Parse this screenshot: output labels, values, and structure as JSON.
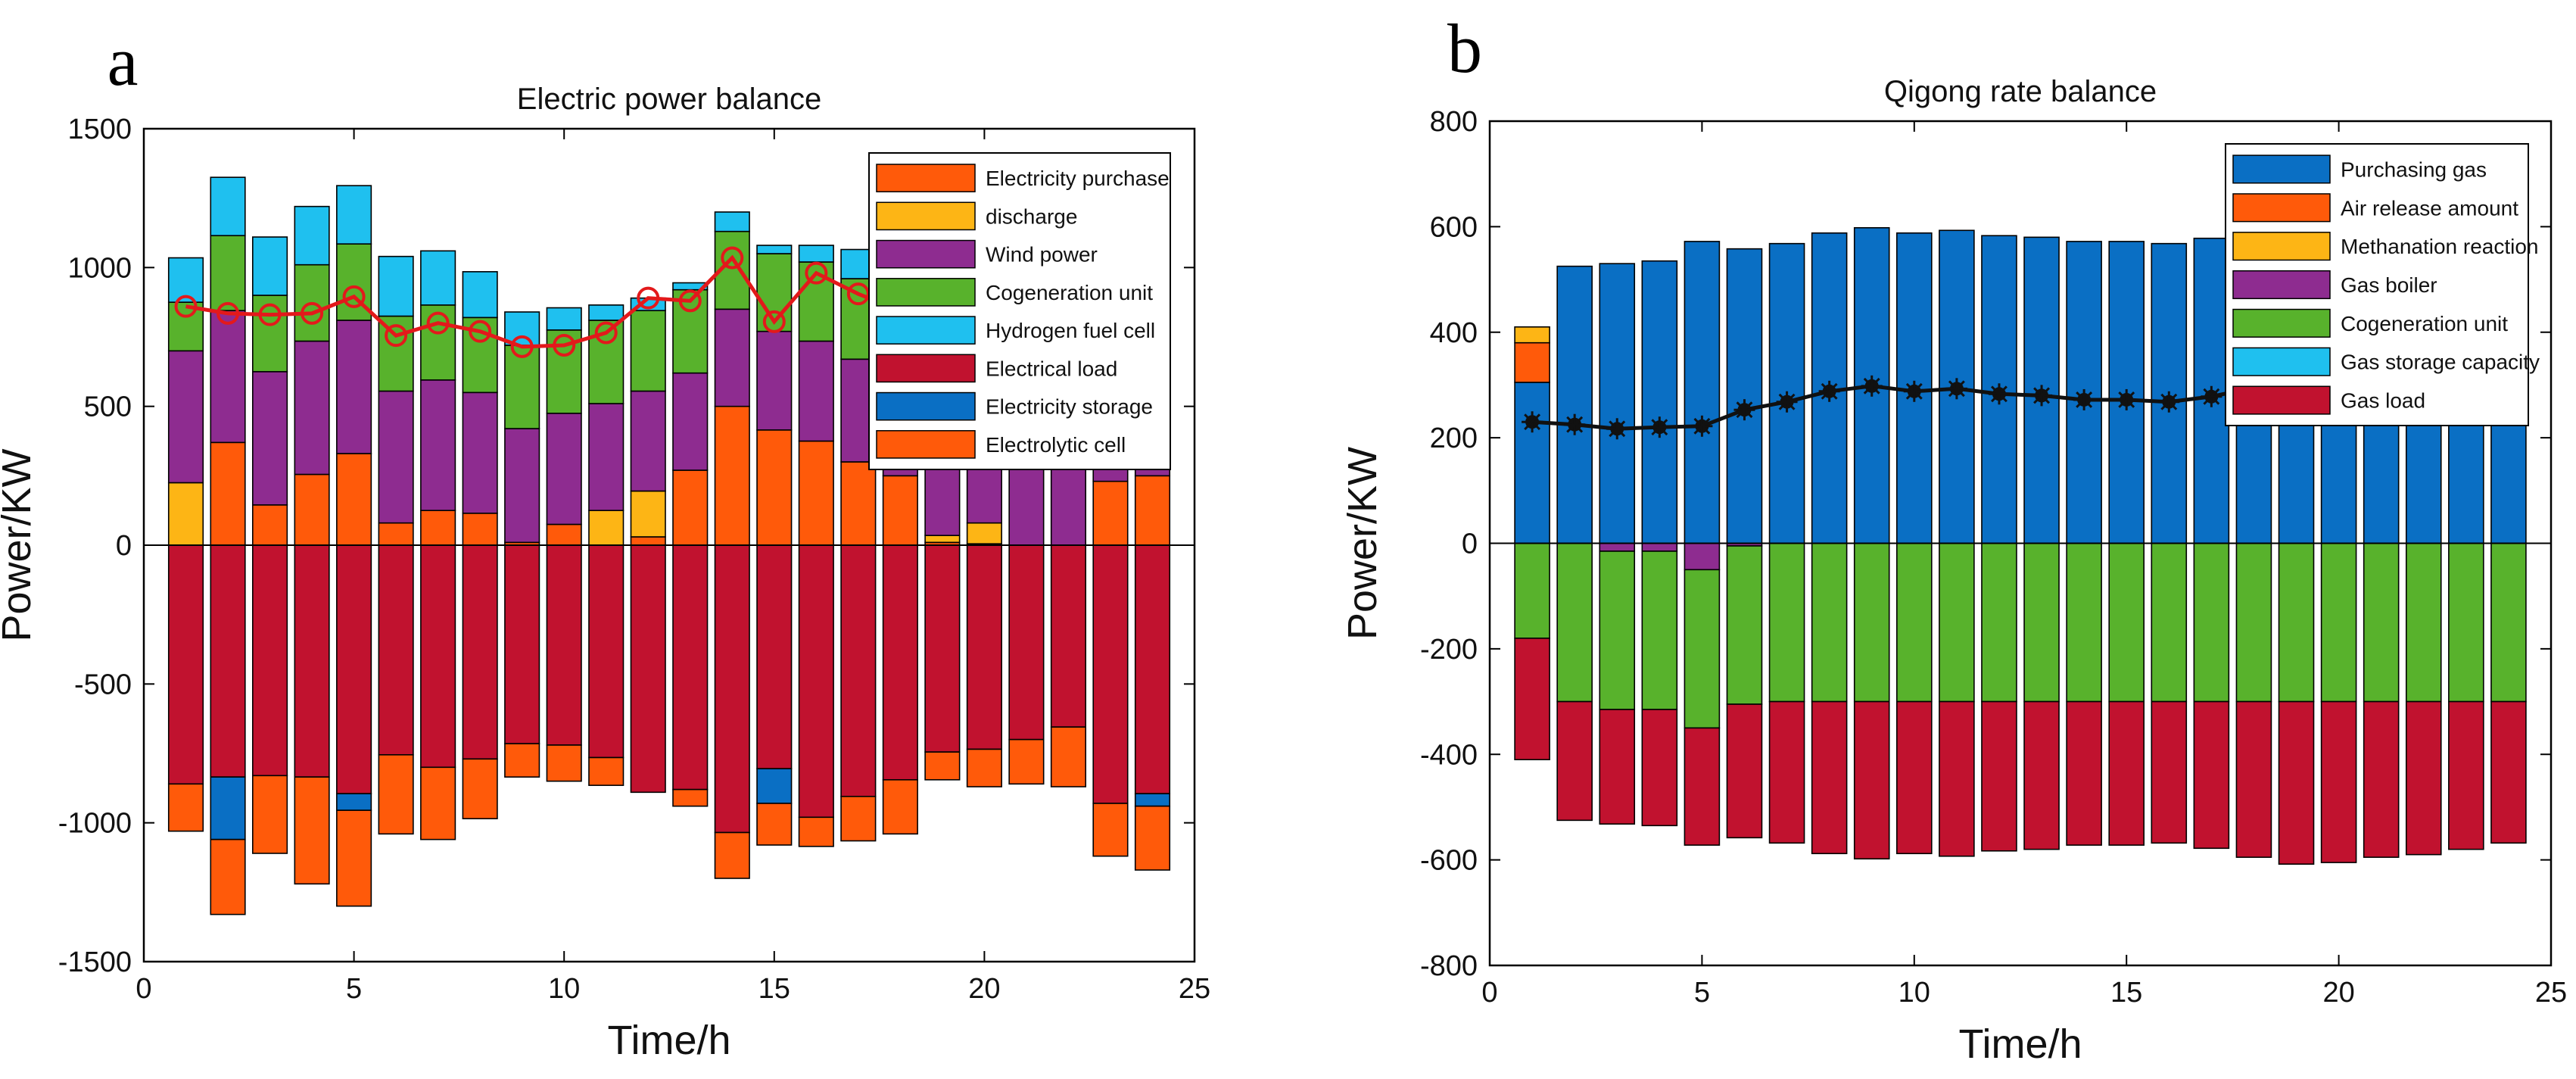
{
  "chart_data": [
    {
      "panel": "a",
      "type": "bar",
      "stacked": true,
      "title": "Electric power balance",
      "xlabel": "Time/h",
      "ylabel": "Power/KW",
      "xlim": [
        0,
        25
      ],
      "ylim": [
        -1500,
        1500
      ],
      "xticks": [
        0,
        5,
        10,
        15,
        20,
        25
      ],
      "yticks": [
        -1500,
        -1000,
        -500,
        0,
        500,
        1000,
        1500
      ],
      "legend_position": "top-right",
      "x": [
        1,
        2,
        3,
        4,
        5,
        6,
        7,
        8,
        9,
        10,
        11,
        12,
        13,
        14,
        15,
        16,
        17,
        18,
        19,
        20,
        21,
        22,
        23,
        24
      ],
      "series": [
        {
          "name": "Electricity purchase",
          "color": "#FF5A0A",
          "values": [
            0,
            370,
            145,
            255,
            330,
            80,
            125,
            115,
            10,
            75,
            0,
            30,
            270,
            500,
            415,
            375,
            300,
            250,
            10,
            5,
            0,
            0,
            230,
            250
          ]
        },
        {
          "name": "discharge",
          "color": "#FDB515",
          "values": [
            225,
            0,
            0,
            0,
            0,
            0,
            0,
            0,
            0,
            0,
            125,
            165,
            0,
            0,
            0,
            0,
            0,
            0,
            25,
            75,
            0,
            0,
            0,
            0
          ]
        },
        {
          "name": "Wind power",
          "color": "#8E2C90",
          "values": [
            475,
            475,
            480,
            480,
            480,
            475,
            470,
            435,
            410,
            400,
            385,
            360,
            350,
            350,
            355,
            360,
            370,
            380,
            390,
            400,
            410,
            420,
            430,
            400
          ]
        },
        {
          "name": "Cogeneration unit",
          "color": "#58B22C",
          "values": [
            175,
            270,
            275,
            275,
            275,
            270,
            270,
            270,
            300,
            300,
            300,
            290,
            300,
            280,
            280,
            285,
            290,
            290,
            295,
            295,
            300,
            300,
            300,
            300
          ]
        },
        {
          "name": "Hydrogen fuel cell",
          "color": "#1FC0EF",
          "values": [
            160,
            210,
            210,
            210,
            210,
            215,
            195,
            165,
            120,
            80,
            55,
            45,
            25,
            70,
            30,
            60,
            105,
            120,
            100,
            100,
            100,
            100,
            100,
            100
          ]
        },
        {
          "name": "Electrical load",
          "color": "#C1122F",
          "values": [
            -860,
            -835,
            -830,
            -835,
            -895,
            -755,
            -800,
            -770,
            -715,
            -720,
            -765,
            -890,
            -880,
            -1035,
            -805,
            -980,
            -905,
            -845,
            -745,
            -735,
            -700,
            -655,
            -930,
            -895
          ]
        },
        {
          "name": "Electricity storage",
          "color": "#0A6FC4",
          "values": [
            0,
            -225,
            0,
            0,
            -60,
            0,
            0,
            0,
            0,
            0,
            0,
            0,
            0,
            0,
            -125,
            0,
            0,
            0,
            0,
            0,
            0,
            0,
            0,
            -45
          ]
        },
        {
          "name": "Electrolytic cell",
          "color": "#FF5A0A",
          "values": [
            -170,
            -270,
            -280,
            -385,
            -345,
            -285,
            -260,
            -215,
            -120,
            -130,
            -100,
            0,
            -60,
            -165,
            -150,
            -105,
            -160,
            -195,
            -100,
            -135,
            -160,
            -215,
            -190,
            -230
          ]
        }
      ],
      "net_line": {
        "color": "#E3191B",
        "values": [
          860,
          835,
          830,
          835,
          895,
          755,
          800,
          770,
          715,
          720,
          765,
          890,
          880,
          1035,
          805,
          980,
          905,
          845,
          745,
          735,
          700,
          655,
          930,
          895
        ]
      }
    },
    {
      "panel": "b",
      "type": "bar",
      "stacked": true,
      "title": "Qigong rate balance",
      "xlabel": "Time/h",
      "ylabel": "Power/KW",
      "xlim": [
        0,
        25
      ],
      "ylim": [
        -800,
        800
      ],
      "xticks": [
        0,
        5,
        10,
        15,
        20,
        25
      ],
      "yticks": [
        -800,
        -600,
        -400,
        -200,
        0,
        200,
        400,
        600,
        800
      ],
      "legend_position": "top-right",
      "x": [
        1,
        2,
        3,
        4,
        5,
        6,
        7,
        8,
        9,
        10,
        11,
        12,
        13,
        14,
        15,
        16,
        17,
        18,
        19,
        20,
        21,
        22,
        23,
        24
      ],
      "series": [
        {
          "name": "Purchasing gas",
          "color": "#0A6FC4",
          "values": [
            305,
            525,
            530,
            535,
            572,
            558,
            568,
            588,
            598,
            588,
            593,
            583,
            580,
            572,
            572,
            568,
            578,
            595,
            608,
            605,
            595,
            590,
            580,
            568
          ]
        },
        {
          "name": "Air release amount",
          "color": "#FF5A0A",
          "values": [
            75,
            0,
            0,
            0,
            0,
            0,
            0,
            0,
            0,
            0,
            0,
            0,
            0,
            0,
            0,
            0,
            0,
            0,
            0,
            0,
            0,
            0,
            0,
            0
          ]
        },
        {
          "name": "Methanation reaction",
          "color": "#FDB515",
          "values": [
            30,
            0,
            0,
            0,
            0,
            0,
            0,
            0,
            0,
            0,
            0,
            0,
            0,
            0,
            0,
            0,
            0,
            0,
            0,
            0,
            0,
            0,
            0,
            0
          ]
        },
        {
          "name": "Gas boiler",
          "color": "#8E2C90",
          "values": [
            0,
            0,
            -15,
            -15,
            -50,
            -5,
            0,
            0,
            0,
            0,
            0,
            0,
            0,
            0,
            0,
            0,
            0,
            0,
            0,
            0,
            0,
            0,
            0,
            0
          ]
        },
        {
          "name": "Cogeneration unit",
          "color": "#58B22C",
          "values": [
            -180,
            -300,
            -300,
            -300,
            -300,
            -300,
            -300,
            -300,
            -300,
            -300,
            -300,
            -300,
            -300,
            -300,
            -300,
            -300,
            -300,
            -300,
            -300,
            -300,
            -300,
            -300,
            -300,
            -300
          ]
        },
        {
          "name": "Gas storage capacity",
          "color": "#1FC0EF",
          "values": [
            0,
            0,
            0,
            0,
            0,
            0,
            0,
            0,
            0,
            0,
            0,
            0,
            0,
            0,
            0,
            0,
            0,
            0,
            0,
            0,
            0,
            0,
            0,
            0
          ]
        },
        {
          "name": "Gas load",
          "color": "#C1122F",
          "values": [
            -230,
            -225,
            -217,
            -220,
            -222,
            -253,
            -268,
            -288,
            -298,
            -288,
            -293,
            -283,
            -280,
            -272,
            -272,
            -268,
            -278,
            -295,
            -308,
            -305,
            -295,
            -290,
            -280,
            -268
          ]
        }
      ],
      "net_line": {
        "color": "#111111",
        "values": [
          230,
          225,
          217,
          220,
          222,
          253,
          268,
          288,
          298,
          288,
          293,
          283,
          280,
          272,
          272,
          268,
          278,
          295,
          308,
          305,
          295,
          290,
          280,
          268
        ]
      }
    }
  ]
}
